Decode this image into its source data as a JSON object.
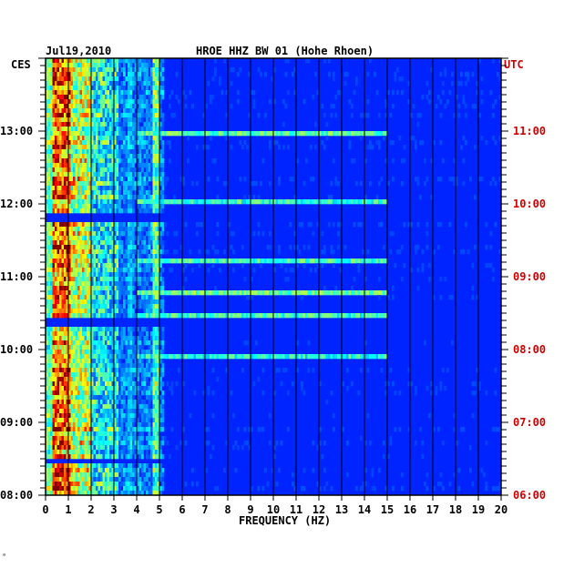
{
  "chart_data": {
    "type": "heatmap",
    "title": "HROE HHZ BW 01 (Hohe Rhoen)",
    "date": "Jul19,2010",
    "left_zone": "CES",
    "right_zone": "UTC",
    "xlabel": "FREQUENCY (HZ)",
    "xlim": [
      0,
      20
    ],
    "x_ticks": [
      "0",
      "1",
      "2",
      "3",
      "4",
      "5",
      "6",
      "7",
      "8",
      "9",
      "10",
      "11",
      "12",
      "13",
      "14",
      "15",
      "16",
      "17",
      "18",
      "19",
      "20"
    ],
    "left_time_labels": [
      "13:00",
      "12:00",
      "11:00",
      "10:00",
      "09:00",
      "08:00"
    ],
    "right_time_labels": [
      "11:00",
      "10:00",
      "09:00",
      "08:00",
      "07:00",
      "06:00"
    ],
    "colors": {
      "background": "#0a1fa8",
      "low": "#1030c0",
      "mid": "#00c8e0",
      "high": "#f0f000",
      "peak": "#d00000",
      "utc": "#d00000"
    }
  },
  "footer_mark": "ᵃ"
}
